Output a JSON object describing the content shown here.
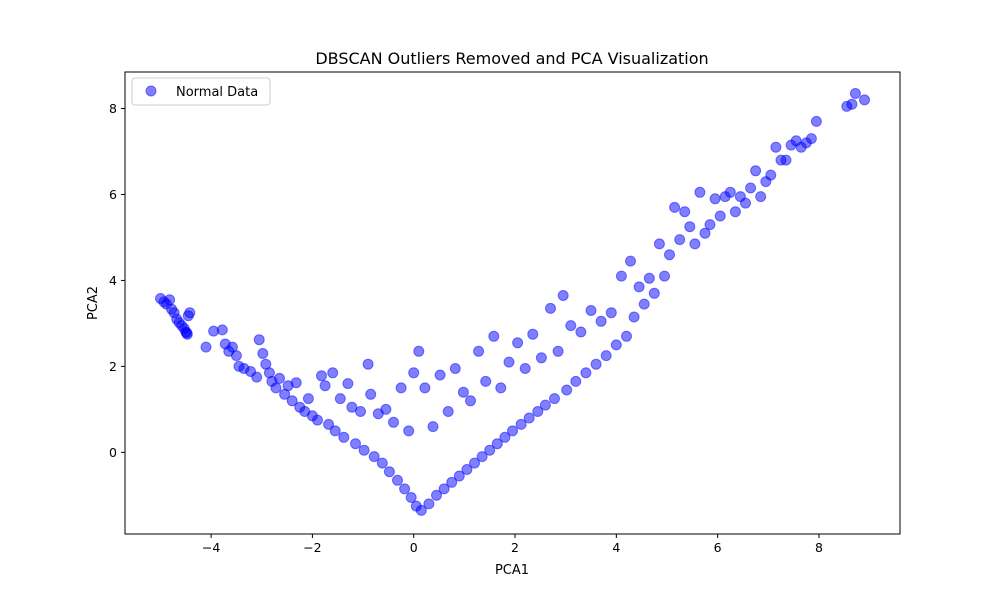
{
  "chart_data": {
    "type": "scatter",
    "title": "DBSCAN Outliers Removed and PCA Visualization",
    "xlabel": "PCA1",
    "ylabel": "PCA2",
    "xlim": [
      -5.7,
      9.6
    ],
    "ylim": [
      -1.9,
      8.85
    ],
    "x_ticks": [
      -4,
      -2,
      0,
      2,
      4,
      6,
      8
    ],
    "y_ticks": [
      0,
      2,
      4,
      6,
      8
    ],
    "x_tick_labels": [
      "−4",
      "−2",
      "0",
      "2",
      "4",
      "6",
      "8"
    ],
    "y_tick_labels": [
      "0",
      "2",
      "4",
      "6",
      "8"
    ],
    "grid": false,
    "legend_position": "upper-left",
    "series": [
      {
        "name": "Normal Data",
        "color": "#0000ff",
        "alpha": 0.5,
        "points": [
          [
            -5.0,
            3.58
          ],
          [
            -4.93,
            3.5
          ],
          [
            -4.88,
            3.45
          ],
          [
            -4.82,
            3.55
          ],
          [
            -4.78,
            3.33
          ],
          [
            -4.73,
            3.25
          ],
          [
            -4.68,
            3.1
          ],
          [
            -4.63,
            3.02
          ],
          [
            -4.58,
            2.95
          ],
          [
            -4.53,
            2.88
          ],
          [
            -4.5,
            2.8
          ],
          [
            -4.47,
            2.75
          ],
          [
            -4.45,
            3.18
          ],
          [
            -4.42,
            3.25
          ],
          [
            -4.48,
            2.78
          ],
          [
            -4.1,
            2.45
          ],
          [
            -3.95,
            2.82
          ],
          [
            -3.78,
            2.85
          ],
          [
            -3.72,
            2.52
          ],
          [
            -3.65,
            2.35
          ],
          [
            -3.58,
            2.45
          ],
          [
            -3.5,
            2.25
          ],
          [
            -3.45,
            2.0
          ],
          [
            -3.35,
            1.95
          ],
          [
            -3.22,
            1.88
          ],
          [
            -3.1,
            1.75
          ],
          [
            -3.05,
            2.62
          ],
          [
            -2.98,
            2.3
          ],
          [
            -2.92,
            2.05
          ],
          [
            -2.85,
            1.85
          ],
          [
            -2.8,
            1.65
          ],
          [
            -2.72,
            1.5
          ],
          [
            -2.65,
            1.72
          ],
          [
            -2.55,
            1.35
          ],
          [
            -2.48,
            1.55
          ],
          [
            -2.4,
            1.2
          ],
          [
            -2.32,
            1.62
          ],
          [
            -2.25,
            1.05
          ],
          [
            -2.15,
            0.95
          ],
          [
            -2.08,
            1.25
          ],
          [
            -2.0,
            0.85
          ],
          [
            -1.9,
            0.75
          ],
          [
            -1.82,
            1.78
          ],
          [
            -1.75,
            1.55
          ],
          [
            -1.68,
            0.65
          ],
          [
            -1.6,
            1.85
          ],
          [
            -1.55,
            0.5
          ],
          [
            -1.45,
            1.25
          ],
          [
            -1.38,
            0.35
          ],
          [
            -1.3,
            1.6
          ],
          [
            -1.22,
            1.05
          ],
          [
            -1.15,
            0.2
          ],
          [
            -1.05,
            0.95
          ],
          [
            -0.98,
            0.05
          ],
          [
            -0.9,
            2.05
          ],
          [
            -0.85,
            1.35
          ],
          [
            -0.78,
            -0.1
          ],
          [
            -0.7,
            0.9
          ],
          [
            -0.62,
            -0.25
          ],
          [
            -0.55,
            1.0
          ],
          [
            -0.48,
            -0.45
          ],
          [
            -0.4,
            0.7
          ],
          [
            -0.32,
            -0.65
          ],
          [
            -0.25,
            1.5
          ],
          [
            -0.18,
            -0.85
          ],
          [
            -0.1,
            0.5
          ],
          [
            -0.05,
            -1.05
          ],
          [
            0.0,
            1.85
          ],
          [
            0.05,
            -1.25
          ],
          [
            0.1,
            2.35
          ],
          [
            0.15,
            -1.35
          ],
          [
            0.22,
            1.5
          ],
          [
            0.3,
            -1.2
          ],
          [
            0.38,
            0.6
          ],
          [
            0.45,
            -1.0
          ],
          [
            0.52,
            1.8
          ],
          [
            0.6,
            -0.85
          ],
          [
            0.68,
            0.95
          ],
          [
            0.75,
            -0.7
          ],
          [
            0.82,
            1.95
          ],
          [
            0.9,
            -0.55
          ],
          [
            0.98,
            1.4
          ],
          [
            1.05,
            -0.4
          ],
          [
            1.12,
            1.2
          ],
          [
            1.2,
            -0.25
          ],
          [
            1.28,
            2.35
          ],
          [
            1.35,
            -0.1
          ],
          [
            1.42,
            1.65
          ],
          [
            1.5,
            0.05
          ],
          [
            1.58,
            2.7
          ],
          [
            1.65,
            0.2
          ],
          [
            1.72,
            1.5
          ],
          [
            1.8,
            0.35
          ],
          [
            1.88,
            2.1
          ],
          [
            1.95,
            0.5
          ],
          [
            2.05,
            2.55
          ],
          [
            2.12,
            0.65
          ],
          [
            2.2,
            1.95
          ],
          [
            2.28,
            0.8
          ],
          [
            2.35,
            2.75
          ],
          [
            2.45,
            0.95
          ],
          [
            2.52,
            2.2
          ],
          [
            2.6,
            1.1
          ],
          [
            2.7,
            3.35
          ],
          [
            2.78,
            1.25
          ],
          [
            2.85,
            2.35
          ],
          [
            2.95,
            3.65
          ],
          [
            3.02,
            1.45
          ],
          [
            3.1,
            2.95
          ],
          [
            3.2,
            1.65
          ],
          [
            3.3,
            2.8
          ],
          [
            3.4,
            1.85
          ],
          [
            3.5,
            3.3
          ],
          [
            3.6,
            2.05
          ],
          [
            3.7,
            3.05
          ],
          [
            3.8,
            2.25
          ],
          [
            3.9,
            3.25
          ],
          [
            4.0,
            2.5
          ],
          [
            4.1,
            4.1
          ],
          [
            4.2,
            2.7
          ],
          [
            4.28,
            4.45
          ],
          [
            4.35,
            3.15
          ],
          [
            4.45,
            3.85
          ],
          [
            4.55,
            3.45
          ],
          [
            4.65,
            4.05
          ],
          [
            4.75,
            3.7
          ],
          [
            4.85,
            4.85
          ],
          [
            4.95,
            4.1
          ],
          [
            5.05,
            4.6
          ],
          [
            5.15,
            5.7
          ],
          [
            5.25,
            4.95
          ],
          [
            5.35,
            5.6
          ],
          [
            5.45,
            5.25
          ],
          [
            5.55,
            4.85
          ],
          [
            5.65,
            6.05
          ],
          [
            5.75,
            5.1
          ],
          [
            5.85,
            5.3
          ],
          [
            5.95,
            5.9
          ],
          [
            6.05,
            5.5
          ],
          [
            6.15,
            5.95
          ],
          [
            6.25,
            6.05
          ],
          [
            6.35,
            5.6
          ],
          [
            6.45,
            5.95
          ],
          [
            6.55,
            5.8
          ],
          [
            6.65,
            6.15
          ],
          [
            6.75,
            6.55
          ],
          [
            6.85,
            5.95
          ],
          [
            6.95,
            6.3
          ],
          [
            7.05,
            6.45
          ],
          [
            7.15,
            7.1
          ],
          [
            7.25,
            6.8
          ],
          [
            7.35,
            6.8
          ],
          [
            7.45,
            7.15
          ],
          [
            7.55,
            7.25
          ],
          [
            7.65,
            7.1
          ],
          [
            7.75,
            7.2
          ],
          [
            7.85,
            7.3
          ],
          [
            7.95,
            7.7
          ],
          [
            8.55,
            8.05
          ],
          [
            8.65,
            8.1
          ],
          [
            8.72,
            8.35
          ],
          [
            8.9,
            8.2
          ]
        ]
      }
    ]
  }
}
